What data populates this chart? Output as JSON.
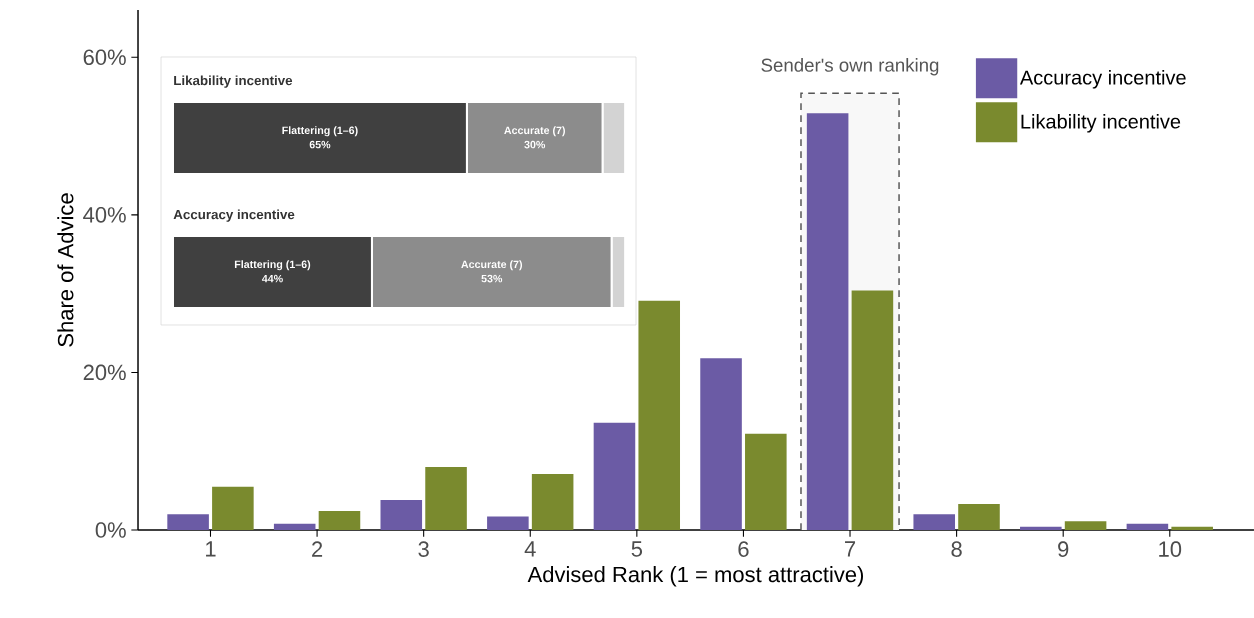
{
  "chart_data": [
    {
      "type": "bar",
      "xlabel": "Advised Rank (1 = most attractive)",
      "ylabel": "Share of Advice",
      "categories": [
        "1",
        "2",
        "3",
        "4",
        "5",
        "6",
        "7",
        "8",
        "9",
        "10"
      ],
      "series": [
        {
          "name": "Accuracy incentive",
          "color": "#6b5ba5",
          "values": [
            2.0,
            0.8,
            3.8,
            1.7,
            13.6,
            21.8,
            52.9,
            2.0,
            0.4,
            0.8
          ]
        },
        {
          "name": "Likability incentive",
          "color": "#7a8a2e",
          "values": [
            5.5,
            2.4,
            8.0,
            7.1,
            29.1,
            12.2,
            30.4,
            3.3,
            1.1,
            0.4
          ]
        }
      ],
      "ylim": [
        0,
        66
      ],
      "yticks": [
        {
          "value": 0,
          "label": "0%"
        },
        {
          "value": 20,
          "label": "20%"
        },
        {
          "value": 40,
          "label": "40%"
        },
        {
          "value": 60,
          "label": "60%"
        }
      ],
      "legend": "top right",
      "bands": [
        {
          "axis": "x",
          "from": "7",
          "to": "7",
          "label": "Sender's own ranking"
        }
      ]
    },
    {
      "type": "bar",
      "orientation": "horizontal",
      "stacked": true,
      "xlim": [
        0,
        100
      ],
      "tick_labels": false,
      "categories": [
        "Likability incentive",
        "Accuracy incentive"
      ],
      "series": [
        {
          "color": "#404040",
          "values": [
            65,
            44
          ],
          "value_labels": [
            "65%",
            "44%"
          ]
        },
        {
          "color": "#8c8c8c",
          "values": [
            30,
            53
          ],
          "value_labels": [
            "30%",
            "53%"
          ]
        },
        {
          "color": "#d3d3d3",
          "values": [
            5,
            3
          ]
        }
      ],
      "annotations": [
        "Flattering (1–6)",
        "Accurate (7)",
        "Flattering (1–6)",
        "Accurate (7)"
      ]
    }
  ]
}
